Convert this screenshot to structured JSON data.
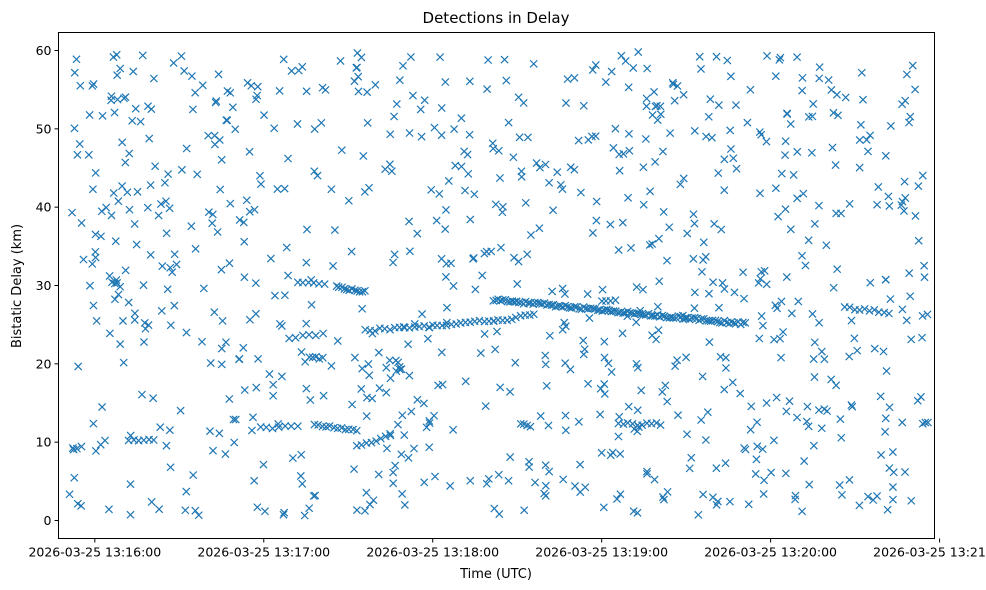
{
  "chart_data": {
    "type": "scatter",
    "title": "Detections in Delay",
    "xlabel": "Time (UTC)",
    "ylabel": "Bistatic Delay (km)",
    "x_unit": "minutes since 2026-03-25 13:15:00",
    "xlim": [
      0.785,
      5.97
    ],
    "ylim": [
      -2.3,
      62.3
    ],
    "x_ticks": [
      {
        "value": 1,
        "label": "2026-03-25 13:16:00"
      },
      {
        "value": 2,
        "label": "2026-03-25 13:17:00"
      },
      {
        "value": 3,
        "label": "2026-03-25 13:18:00"
      },
      {
        "value": 4,
        "label": "2026-03-25 13:19:00"
      },
      {
        "value": 5,
        "label": "2026-03-25 13:20:00"
      },
      {
        "value": 6,
        "label": "2026-03-25 13:21:00"
      }
    ],
    "y_ticks": [
      {
        "value": 0,
        "label": "0"
      },
      {
        "value": 10,
        "label": "10"
      },
      {
        "value": 20,
        "label": "20"
      },
      {
        "value": 30,
        "label": "30"
      },
      {
        "value": 40,
        "label": "40"
      },
      {
        "value": 50,
        "label": "50"
      },
      {
        "value": 60,
        "label": "60"
      }
    ],
    "marker": "x",
    "color": "#1f77b4",
    "series": [
      {
        "name": "Detections",
        "tracks": [
          {
            "x_start": 3.36,
            "x_end": 4.85,
            "y_start": 28.2,
            "y_end": 25.1,
            "count": 110
          },
          {
            "x_start": 3.0,
            "x_end": 3.36,
            "y_start": 24.9,
            "y_end": 25.5,
            "count": 14
          },
          {
            "x_start": 3.36,
            "x_end": 3.6,
            "y_start": 25.5,
            "y_end": 26.2,
            "count": 10
          },
          {
            "x_start": 2.6,
            "x_end": 2.98,
            "y_start": 24.3,
            "y_end": 24.7,
            "count": 14
          },
          {
            "x_start": 2.43,
            "x_end": 2.6,
            "y_start": 29.8,
            "y_end": 29.2,
            "count": 12
          },
          {
            "x_start": 2.2,
            "x_end": 2.36,
            "y_start": 30.5,
            "y_end": 30.2,
            "count": 6
          },
          {
            "x_start": 2.15,
            "x_end": 2.35,
            "y_start": 23.4,
            "y_end": 23.8,
            "count": 6
          },
          {
            "x_start": 2.27,
            "x_end": 2.35,
            "y_start": 20.8,
            "y_end": 20.8,
            "count": 5
          },
          {
            "x_start": 2.3,
            "x_end": 2.55,
            "y_start": 12.2,
            "y_end": 11.6,
            "count": 12
          },
          {
            "x_start": 2.55,
            "x_end": 2.75,
            "y_start": 9.6,
            "y_end": 10.8,
            "count": 8
          },
          {
            "x_start": 1.98,
            "x_end": 2.2,
            "y_start": 11.8,
            "y_end": 12.1,
            "count": 7
          },
          {
            "x_start": 1.2,
            "x_end": 1.35,
            "y_start": 10.3,
            "y_end": 10.4,
            "count": 6
          },
          {
            "x_start": 1.1,
            "x_end": 1.15,
            "y_start": 30.5,
            "y_end": 30.0,
            "count": 4
          },
          {
            "x_start": 4.1,
            "x_end": 4.35,
            "y_start": 12.3,
            "y_end": 12.3,
            "count": 10
          },
          {
            "x_start": 5.44,
            "x_end": 5.7,
            "y_start": 27.2,
            "y_end": 26.5,
            "count": 10
          },
          {
            "x_start": 3.52,
            "x_end": 3.58,
            "y_start": 12.3,
            "y_end": 11.8,
            "count": 4
          },
          {
            "x_start": 5.9,
            "x_end": 5.93,
            "y_start": 12.4,
            "y_end": 12.4,
            "count": 3
          },
          {
            "x_start": 0.87,
            "x_end": 0.92,
            "y_start": 9.3,
            "y_end": 9.3,
            "count": 3
          },
          {
            "x_start": 5.9,
            "x_end": 5.93,
            "y_start": 26.2,
            "y_end": 26.2,
            "count": 2
          }
        ],
        "scatter": {
          "count": 860,
          "x_range": [
            0.85,
            5.93
          ],
          "y_range": [
            0.5,
            60.0
          ]
        }
      }
    ]
  }
}
